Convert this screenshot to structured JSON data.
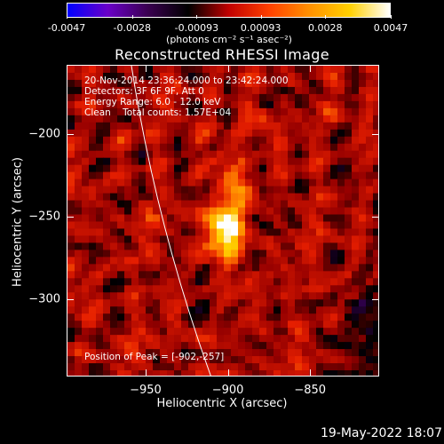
{
  "colorbar": {
    "tick_labels": [
      "-0.0047",
      "-0.0028",
      "-0.00093",
      "0.00093",
      "0.0028",
      "0.0047"
    ],
    "units_label": "(photons cm⁻² s⁻¹ asec⁻²)",
    "colors": [
      "#0000ff",
      "#6a00c8",
      "#3a0050",
      "#000000",
      "#c00000",
      "#ff4000",
      "#ff9000",
      "#ffd000",
      "#ffffff"
    ]
  },
  "title": "Reconstructed RHESSI Image",
  "info": {
    "time_range": "20-Nov-2014 23:36:24.000 to 23:42:24.000",
    "detectors": "Detectors: 3F 6F 9F, Att 0",
    "energy_range": "Energy Range: 6.0 - 12.0 keV",
    "method_counts": "Clean    Total counts: 1.57E+04",
    "peak_position": "Position of Peak = [-902,-257]"
  },
  "axes": {
    "xlabel": "Heliocentric X (arcsec)",
    "ylabel": "Heliocentric Y (arcsec)",
    "xlim": [
      -998,
      -808
    ],
    "ylim": [
      -347,
      -158
    ],
    "xticks": [
      {
        "value": -950,
        "label": "−950"
      },
      {
        "value": -900,
        "label": "−900"
      },
      {
        "value": -850,
        "label": "−850"
      }
    ],
    "yticks": [
      {
        "value": -200,
        "label": "−200"
      },
      {
        "value": -250,
        "label": "−250"
      },
      {
        "value": -300,
        "label": "−300"
      }
    ]
  },
  "image": {
    "peak": {
      "x": -902,
      "y": -257
    },
    "secondary_sources": [
      {
        "x": -895,
        "y": -232
      },
      {
        "x": -880,
        "y": -195
      }
    ],
    "limb_line_color": "#ffffff"
  },
  "footer": {
    "timestamp": "19-May-2022 18:07"
  }
}
